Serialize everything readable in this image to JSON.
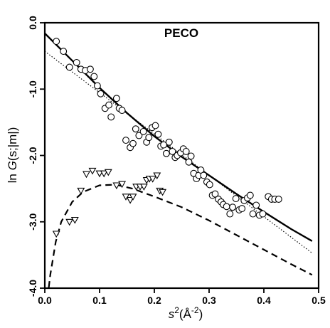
{
  "chart_data": {
    "type": "scatter",
    "title": "PECO",
    "xlabel": {
      "base": "s",
      "sup": "2",
      "unit": "(Å",
      "unit_sup": "-2",
      "close": ")"
    },
    "ylabel": {
      "pre": "ln ",
      "func": "G",
      "args": "(s;|m|)"
    },
    "xlim": [
      0.0,
      0.5
    ],
    "ylim": [
      -4.0,
      0.0
    ],
    "x_ticks": [
      0.0,
      0.1,
      0.2,
      0.3,
      0.4,
      0.5
    ],
    "x_tick_labels": [
      "0.0",
      "0.1",
      "0.2",
      "0.3",
      "0.4",
      "0.5"
    ],
    "y_ticks": [
      0.0,
      -1.0,
      -2.0,
      -3.0,
      -4.0
    ],
    "y_tick_labels": [
      "0.0",
      "-1.0",
      "-2.0",
      "-3.0",
      "-4.0"
    ],
    "grid": false,
    "legend": "none",
    "series": [
      {
        "marker": "circle",
        "points": [
          [
            0.021,
            -0.28
          ],
          [
            0.034,
            -0.43
          ],
          [
            0.045,
            -0.67
          ],
          [
            0.058,
            -0.6
          ],
          [
            0.066,
            -0.7
          ],
          [
            0.074,
            -0.72
          ],
          [
            0.083,
            -0.7
          ],
          [
            0.09,
            -0.81
          ],
          [
            0.096,
            -0.95
          ],
          [
            0.102,
            -1.07
          ],
          [
            0.11,
            -1.29
          ],
          [
            0.117,
            -1.24
          ],
          [
            0.121,
            -1.42
          ],
          [
            0.131,
            -1.14
          ],
          [
            0.136,
            -1.29
          ],
          [
            0.141,
            -1.32
          ],
          [
            0.148,
            -1.77
          ],
          [
            0.156,
            -1.88
          ],
          [
            0.161,
            -1.82
          ],
          [
            0.166,
            -1.6
          ],
          [
            0.172,
            -1.7
          ],
          [
            0.18,
            -1.64
          ],
          [
            0.186,
            -1.8
          ],
          [
            0.19,
            -1.73
          ],
          [
            0.196,
            -1.58
          ],
          [
            0.202,
            -1.55
          ],
          [
            0.207,
            -1.68
          ],
          [
            0.212,
            -1.86
          ],
          [
            0.217,
            -1.84
          ],
          [
            0.222,
            -1.97
          ],
          [
            0.227,
            -1.8
          ],
          [
            0.233,
            -1.94
          ],
          [
            0.238,
            -2.03
          ],
          [
            0.242,
            -2.0
          ],
          [
            0.248,
            -1.96
          ],
          [
            0.253,
            -1.9
          ],
          [
            0.258,
            -1.94
          ],
          [
            0.263,
            -2.1
          ],
          [
            0.267,
            -2.01
          ],
          [
            0.272,
            -2.27
          ],
          [
            0.277,
            -2.35
          ],
          [
            0.281,
            -2.3
          ],
          [
            0.285,
            -2.22
          ],
          [
            0.29,
            -2.3
          ],
          [
            0.296,
            -2.4
          ],
          [
            0.301,
            -2.44
          ],
          [
            0.306,
            -2.6
          ],
          [
            0.311,
            -2.58
          ],
          [
            0.317,
            -2.66
          ],
          [
            0.322,
            -2.7
          ],
          [
            0.326,
            -2.74
          ],
          [
            0.332,
            -2.77
          ],
          [
            0.338,
            -2.88
          ],
          [
            0.343,
            -2.78
          ],
          [
            0.349,
            -2.65
          ],
          [
            0.355,
            -2.82
          ],
          [
            0.36,
            -2.8
          ],
          [
            0.364,
            -2.68
          ],
          [
            0.37,
            -2.64
          ],
          [
            0.375,
            -2.6
          ],
          [
            0.38,
            -2.88
          ],
          [
            0.386,
            -2.75
          ],
          [
            0.392,
            -2.9
          ],
          [
            0.398,
            -2.88
          ],
          [
            0.408,
            -2.62
          ],
          [
            0.414,
            -2.66
          ],
          [
            0.42,
            -2.66
          ],
          [
            0.427,
            -2.66
          ]
        ]
      },
      {
        "marker": "triangle-down",
        "points": [
          [
            0.021,
            -3.18
          ],
          [
            0.045,
            -3.0
          ],
          [
            0.055,
            -2.97
          ],
          [
            0.066,
            -2.53
          ],
          [
            0.076,
            -2.28
          ],
          [
            0.087,
            -2.23
          ],
          [
            0.1,
            -2.27
          ],
          [
            0.108,
            -2.27
          ],
          [
            0.116,
            -2.25
          ],
          [
            0.131,
            -2.45
          ],
          [
            0.141,
            -2.43
          ],
          [
            0.148,
            -2.62
          ],
          [
            0.156,
            -2.67
          ],
          [
            0.161,
            -2.62
          ],
          [
            0.167,
            -2.47
          ],
          [
            0.174,
            -2.47
          ],
          [
            0.181,
            -2.47
          ],
          [
            0.186,
            -2.37
          ],
          [
            0.191,
            -2.35
          ],
          [
            0.197,
            -2.35
          ],
          [
            0.205,
            -2.3
          ],
          [
            0.21,
            -2.53
          ],
          [
            0.215,
            -2.55
          ]
        ]
      }
    ],
    "curves": [
      {
        "style": "solid",
        "points": [
          [
            0.0,
            -0.16
          ],
          [
            0.05,
            -0.57
          ],
          [
            0.1,
            -0.98
          ],
          [
            0.15,
            -1.36
          ],
          [
            0.2,
            -1.71
          ],
          [
            0.25,
            -2.02
          ],
          [
            0.3,
            -2.3
          ],
          [
            0.35,
            -2.58
          ],
          [
            0.4,
            -2.85
          ],
          [
            0.45,
            -3.11
          ],
          [
            0.488,
            -3.29
          ]
        ]
      },
      {
        "style": "dotted",
        "points": [
          [
            0.0,
            -0.43
          ],
          [
            0.488,
            -3.47
          ]
        ]
      },
      {
        "style": "dashed",
        "points": [
          [
            0.005,
            -4.15
          ],
          [
            0.01,
            -3.8
          ],
          [
            0.02,
            -3.3
          ],
          [
            0.03,
            -3.0
          ],
          [
            0.05,
            -2.7
          ],
          [
            0.07,
            -2.55
          ],
          [
            0.1,
            -2.45
          ],
          [
            0.13,
            -2.44
          ],
          [
            0.16,
            -2.5
          ],
          [
            0.2,
            -2.62
          ],
          [
            0.25,
            -2.78
          ],
          [
            0.3,
            -2.98
          ],
          [
            0.35,
            -3.2
          ],
          [
            0.4,
            -3.42
          ],
          [
            0.45,
            -3.64
          ],
          [
            0.488,
            -3.8
          ]
        ]
      }
    ]
  }
}
